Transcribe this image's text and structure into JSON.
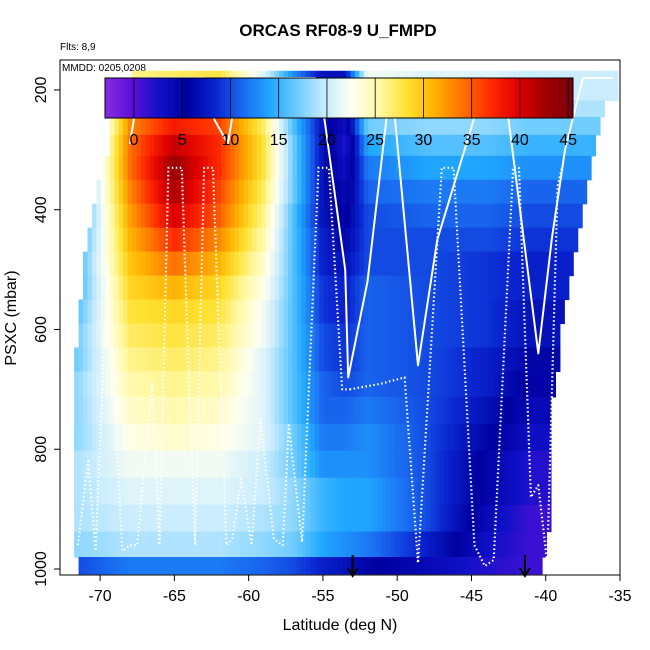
{
  "chart_data": {
    "type": "heatmap",
    "title": "ORCAS RF08-9 U_FMPD",
    "subtitle_flights": "Flts: 8,9",
    "subtitle_dates": "MMDD: 0205,0208",
    "xlabel": "Latitude (deg N)",
    "ylabel": "PSXC (mbar)",
    "xlim": [
      -72.7,
      -35
    ],
    "ylim": [
      1010,
      150
    ],
    "x_ticks": [
      -70,
      -65,
      -60,
      -55,
      -50,
      -45,
      -40,
      -35
    ],
    "y_ticks": [
      200,
      400,
      600,
      800,
      1000
    ],
    "colorbar": {
      "range": [
        -3,
        45.5
      ],
      "ticks": [
        0,
        5,
        10,
        15,
        20,
        25,
        30,
        35,
        40,
        45
      ],
      "colors": [
        "#8a2be2",
        "#5a10d8",
        "#1010c8",
        "#0000a0",
        "#0a24d0",
        "#1a6af0",
        "#20a8ff",
        "#70ccff",
        "#c8ecff",
        "#fffff0",
        "#fff8a0",
        "#ffe030",
        "#ffb000",
        "#ff7000",
        "#ff2a00",
        "#e00000",
        "#a00000",
        "#7a0010"
      ]
    },
    "column_latitudes": [
      -71.6,
      -71.3,
      -71,
      -70.7,
      -70.4,
      -70.1,
      -69.8,
      -69.5,
      -69.2,
      -68.9,
      -68.6,
      -68.3,
      -68,
      -67.7,
      -67.4,
      -67.1,
      -66.8,
      -66.5,
      -66.2,
      -65.9,
      -65.6,
      -65.3,
      -65,
      -64.7,
      -64.4,
      -64.1,
      -63.8,
      -63.5,
      -63.2,
      -62.9,
      -62.6,
      -62.3,
      -62,
      -61.7,
      -61.4,
      -61.1,
      -60.8,
      -60.5,
      -60.2,
      -59.9,
      -59.6,
      -59.3,
      -59,
      -58.7,
      -58.4,
      -58.1,
      -57.8,
      -57.5,
      -57.2,
      -56.9,
      -56.6,
      -56.3,
      -56,
      -55.7,
      -55.4,
      -55.1,
      -54.8,
      -54.5,
      -54.2,
      -53.9,
      -53.6,
      -53.3,
      -53,
      -52.7,
      -52.4,
      -52.1,
      -51.8,
      -51.5,
      -51.2,
      -50.9,
      -50.6,
      -50.3,
      -50,
      -49.7,
      -49.4,
      -49.1,
      -48.8,
      -48.5,
      -48.2,
      -47.9,
      -47.6,
      -47.3,
      -47,
      -46.7,
      -46.4,
      -46.1,
      -45.8,
      -45.5,
      -45.2,
      -44.9,
      -44.6,
      -44.3,
      -44,
      -43.7,
      -43.4,
      -43.1,
      -42.8,
      -42.5,
      -42.2,
      -41.9,
      -41.6,
      -41.3,
      -41,
      -40.7,
      -40.4,
      -40.1,
      -39.8,
      -39.5,
      -39.2,
      -38.9,
      -38.6,
      -38.3,
      -38,
      -37.7,
      -37.4,
      -37.1,
      -36.8,
      -36.5,
      -36.2,
      -35.9,
      -35.6,
      -35.3
    ],
    "pressure_levels": [
      180,
      205,
      230,
      260,
      290,
      330,
      370,
      410,
      450,
      490,
      530,
      570,
      610,
      650,
      690,
      735,
      780,
      825,
      870,
      915,
      960,
      1000
    ],
    "level_anchor_latitudes": [
      -71.5,
      -68,
      -65,
      -62,
      -59,
      -57,
      -55,
      -53.5,
      -52,
      -48,
      -44,
      -41,
      -38,
      -35.5
    ],
    "wind_u_by_level": [
      [
        8,
        26,
        27,
        28,
        21,
        13,
        7,
        7,
        22,
        21,
        21,
        20,
        20,
        20
      ],
      [
        9,
        27,
        29,
        30,
        22,
        14,
        7,
        6,
        22,
        21,
        21,
        20,
        20,
        20
      ],
      [
        10,
        31,
        33,
        33,
        25,
        15,
        6,
        5,
        20,
        20,
        20,
        19,
        19,
        19
      ],
      [
        10,
        33,
        38,
        36,
        27,
        16,
        7,
        3,
        17,
        18,
        18,
        17,
        17,
        17
      ],
      [
        11,
        34,
        41,
        37,
        28,
        17,
        7,
        2,
        14,
        16,
        16,
        15,
        15,
        15
      ],
      [
        12,
        34,
        43,
        37,
        28,
        17,
        7,
        3,
        12,
        14,
        14,
        13,
        13,
        13
      ],
      [
        13,
        33,
        42,
        36,
        27,
        17,
        7,
        4,
        11,
        12,
        12,
        11,
        11,
        11
      ],
      [
        13,
        32,
        40,
        35,
        26,
        16,
        7,
        5,
        10,
        11,
        11,
        10,
        10,
        10
      ],
      [
        14,
        31,
        37,
        33,
        25,
        16,
        8,
        6,
        10,
        10,
        10,
        9,
        9,
        9
      ],
      [
        15,
        30,
        34,
        31,
        24,
        16,
        8,
        7,
        10,
        10,
        9,
        8,
        8,
        8
      ],
      [
        15,
        29,
        31,
        29,
        23,
        16,
        9,
        8,
        11,
        10,
        9,
        8,
        8,
        8
      ],
      [
        16,
        28,
        29,
        28,
        22,
        16,
        9,
        8,
        11,
        10,
        9,
        7,
        7,
        7
      ],
      [
        17,
        27,
        28,
        27,
        22,
        16,
        10,
        9,
        11,
        10,
        9,
        7,
        7,
        7
      ],
      [
        17,
        26,
        27,
        26,
        21,
        16,
        10,
        9,
        11,
        10,
        8,
        6,
        6,
        6
      ],
      [
        18,
        25,
        26,
        25,
        21,
        16,
        11,
        10,
        11,
        10,
        8,
        5,
        5,
        5
      ],
      [
        18,
        24,
        25,
        24,
        21,
        16,
        11,
        11,
        12,
        10,
        7,
        4,
        4,
        4
      ],
      [
        18,
        23,
        24,
        23,
        21,
        17,
        12,
        12,
        13,
        10,
        6,
        3,
        3,
        3
      ],
      [
        19,
        22,
        22,
        22,
        20,
        17,
        13,
        13,
        13,
        10,
        5,
        2,
        2,
        2
      ],
      [
        19,
        21,
        21,
        21,
        20,
        18,
        15,
        14,
        14,
        10,
        5,
        2,
        2,
        2
      ],
      [
        19,
        20,
        20,
        20,
        19,
        18,
        15,
        14,
        14,
        10,
        4,
        1,
        1,
        1
      ],
      [
        18,
        19,
        19,
        19,
        18,
        17,
        14,
        13,
        12,
        8,
        3,
        1,
        1,
        1
      ],
      [
        10,
        12,
        12,
        12,
        11,
        10,
        8,
        7,
        6,
        4,
        2,
        1,
        1,
        1
      ]
    ],
    "coverage_lat_min_by_level": [
      -67.8,
      -67.3,
      -67,
      -69.2,
      -69.2,
      -69.8,
      -70.3,
      -70.6,
      -70.8,
      -71,
      -71.1,
      -71.3,
      -71.5,
      -71.6,
      -71.7,
      -71.8,
      -71.8,
      -71.8,
      -71.8,
      -71.8,
      -71.8,
      -71.5
    ],
    "coverage_lat_max_by_level": [
      -35.3,
      -35.3,
      -36,
      -36.3,
      -36.6,
      -36.9,
      -37.2,
      -37.5,
      -37.8,
      -38.1,
      -38.4,
      -38.7,
      -39,
      -39.2,
      -39.4,
      -39.6,
      -39.8,
      -39.8,
      -39.8,
      -39.8,
      -39.9,
      -40.2
    ],
    "flight_tracks": [
      {
        "name": "solid",
        "lat": [
          -68,
          -67.8,
          -67.3,
          -65,
          -63,
          -62.3,
          -61.4,
          -61,
          -60.5,
          -55.5,
          -55,
          -53.5,
          -53.3,
          -52,
          -50.4,
          -48.6,
          -47.3,
          -44,
          -42.5,
          -40.5,
          -39.6,
          -38.7,
          -37.5,
          -35.5
        ],
        "p": [
          290,
          260,
          180,
          180,
          180,
          250,
          290,
          230,
          180,
          180,
          230,
          500,
          680,
          520,
          180,
          660,
          450,
          180,
          250,
          640,
          450,
          300,
          180,
          180
        ]
      },
      {
        "name": "dotted",
        "lat": [
          -71.5,
          -70.8,
          -70.3,
          -69.5,
          -68.5,
          -68,
          -67.5,
          -66.5,
          -66,
          -65.4,
          -64.5,
          -64,
          -63.6,
          -63,
          -62.4,
          -61.5,
          -61.1,
          -60.5,
          -59.8,
          -59.2,
          -58.3,
          -57.7,
          -57.3,
          -56.4,
          -55.3,
          -54.6,
          -53.7,
          -53.2
        ],
        "p": [
          960,
          820,
          970,
          490,
          970,
          960,
          960,
          690,
          960,
          330,
          330,
          700,
          960,
          330,
          330,
          960,
          950,
          850,
          960,
          750,
          950,
          960,
          760,
          955,
          330,
          330,
          700,
          700
        ]
      },
      {
        "name": "dotted-2",
        "lat": [
          -53.2,
          -51,
          -49.5,
          -48.6,
          -47,
          -46.2,
          -44.8,
          -44.1,
          -43.5,
          -42.2,
          -41.8,
          -41,
          -40.5,
          -39.9,
          -39.2,
          -38.9
        ],
        "p": [
          700,
          690,
          680,
          990,
          330,
          330,
          960,
          995,
          985,
          330,
          330,
          880,
          860,
          990,
          360,
          330
        ]
      }
    ],
    "arrow_markers_lat": [
      -53,
      -41.4
    ]
  }
}
